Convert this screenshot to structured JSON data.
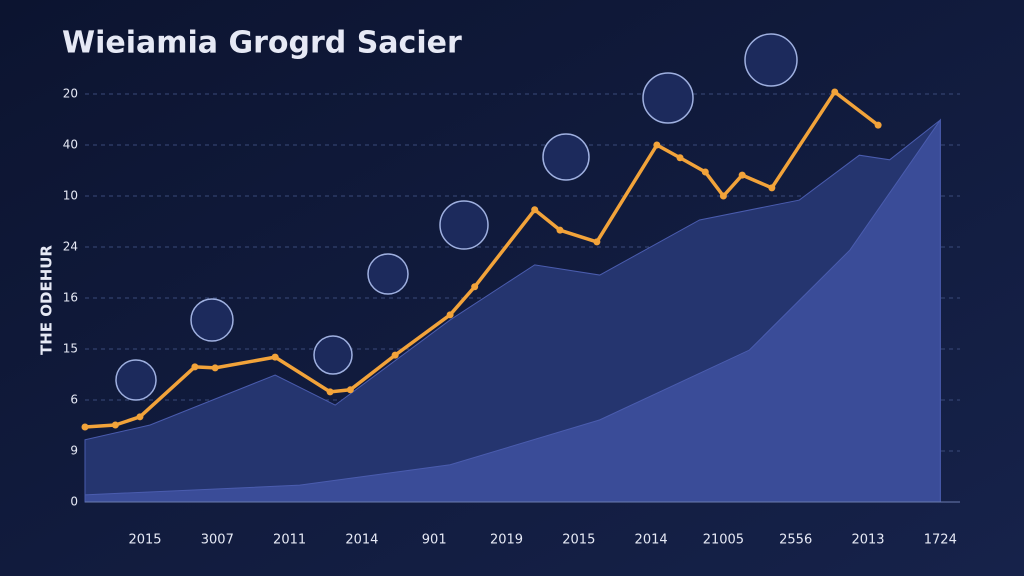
{
  "chart_data": {
    "type": "line",
    "title": "Wieiamia Grogrd Sacier",
    "y_label": "THE ODEHUR",
    "categories": [
      "2015",
      "3007",
      "2011",
      "2014",
      "901",
      "2019",
      "2015",
      "2014",
      "21005",
      "2556",
      "2013",
      "1724"
    ],
    "xlim": [
      -0.83,
      11
    ],
    "ylim": [
      0,
      8
    ],
    "yticks": [
      0,
      1,
      2,
      3,
      4,
      5,
      6,
      7,
      8
    ],
    "ytick_labels": [
      "0",
      "9",
      "6",
      "15",
      "16",
      "24",
      "10",
      "40",
      "20"
    ],
    "grid": true,
    "series": [
      {
        "kind": "area",
        "color": "#25356f",
        "x": [
          -0.83,
          0.07,
          1.8,
          2.63,
          4.22,
          5.39,
          6.29,
          7.67,
          9.05,
          9.88,
          10.3,
          11.0
        ],
        "values": [
          1.22,
          1.51,
          2.49,
          1.9,
          3.57,
          4.65,
          4.45,
          5.53,
          5.92,
          6.8,
          6.71,
          7.49
        ]
      },
      {
        "kind": "area",
        "color": "#3a4c98",
        "x": [
          -0.83,
          2.14,
          4.22,
          6.29,
          8.36,
          9.75,
          11.0
        ],
        "values": [
          0.14,
          0.33,
          0.73,
          1.61,
          2.98,
          4.94,
          7.49
        ]
      },
      {
        "kind": "line",
        "color": "#f2a33a",
        "x": [
          -0.83,
          -0.41,
          -0.07,
          0.69,
          0.97,
          1.8,
          2.56,
          2.84,
          3.46,
          4.22,
          4.56,
          5.39,
          5.74,
          6.25,
          7.08,
          7.4,
          7.75,
          8.0,
          8.26,
          8.67,
          9.54,
          10.14
        ],
        "values": [
          1.47,
          1.51,
          1.67,
          2.65,
          2.63,
          2.84,
          2.16,
          2.2,
          2.88,
          3.67,
          4.22,
          5.73,
          5.33,
          5.1,
          7.0,
          6.75,
          6.47,
          6.0,
          6.41,
          6.16,
          8.04,
          7.39
        ]
      }
    ]
  }
}
